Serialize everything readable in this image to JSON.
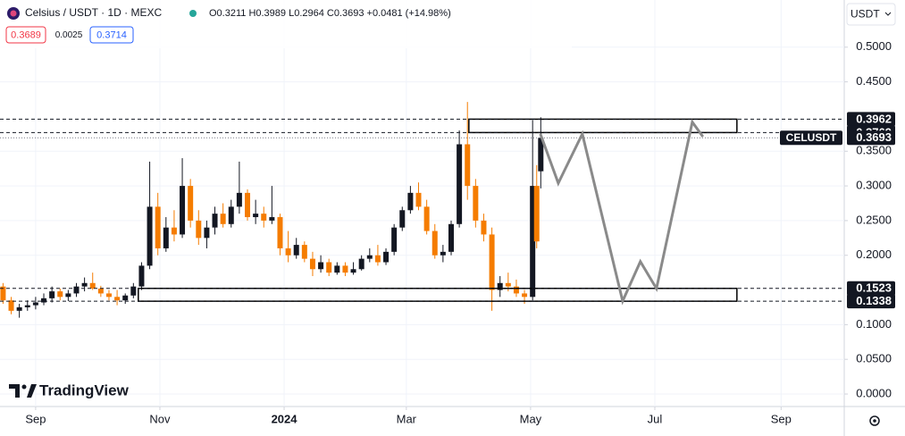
{
  "header": {
    "title": "Celsius / USDT · 1D · MEXC",
    "ohlc": "O0.3211 H0.3989 L0.2964 C0.3693 +0.0481 (+14.98%)",
    "bid": "0.3689",
    "spread": "0.0025",
    "ask": "0.3714",
    "currency": "USDT",
    "brand": "TradingView"
  },
  "chart_data": {
    "type": "candlestick",
    "up_color": "#131722",
    "down_color": "#f57c00",
    "grid": true,
    "xlim": [
      -17.5,
      397
    ],
    "ylim": [
      -0.018,
      0.568
    ],
    "xticks": [
      {
        "value": 0,
        "label": "Sep"
      },
      {
        "value": 61,
        "label": "Nov"
      },
      {
        "value": 122,
        "label": "2024"
      },
      {
        "value": 182,
        "label": "Mar"
      },
      {
        "value": 243,
        "label": "May"
      },
      {
        "value": 304,
        "label": "Jul"
      },
      {
        "value": 366,
        "label": "Sep"
      }
    ],
    "yticks": [
      {
        "value": 0.5,
        "label": "0.5000"
      },
      {
        "value": 0.45,
        "label": "0.4500"
      },
      {
        "value": 0.35,
        "label": "0.3500"
      },
      {
        "value": 0.3,
        "label": "0.3000"
      },
      {
        "value": 0.25,
        "label": "0.2500"
      },
      {
        "value": 0.2,
        "label": "0.2000"
      },
      {
        "value": 0.1,
        "label": "0.1000"
      },
      {
        "value": 0.05,
        "label": "0.0500"
      },
      {
        "value": 0,
        "label": "0.0000"
      }
    ],
    "x": [
      -16,
      -12,
      -8,
      -4,
      0,
      4,
      8,
      12,
      16,
      20,
      24,
      28,
      32,
      36,
      40,
      44,
      48,
      52,
      56,
      60,
      64,
      68,
      72,
      76,
      80,
      84,
      88,
      92,
      96,
      100,
      104,
      108,
      112,
      116,
      120,
      124,
      128,
      132,
      136,
      140,
      144,
      148,
      152,
      156,
      160,
      164,
      168,
      172,
      176,
      180,
      184,
      188,
      192,
      196,
      200,
      204,
      208,
      212,
      216,
      220,
      224,
      228,
      232,
      236,
      240,
      244,
      246,
      248
    ],
    "open": [
      0.155,
      0.135,
      0.12,
      0.125,
      0.128,
      0.132,
      0.138,
      0.148,
      0.14,
      0.145,
      0.155,
      0.16,
      0.152,
      0.145,
      0.14,
      0.135,
      0.142,
      0.155,
      0.185,
      0.27,
      0.21,
      0.24,
      0.23,
      0.3,
      0.25,
      0.225,
      0.24,
      0.26,
      0.245,
      0.27,
      0.29,
      0.255,
      0.26,
      0.25,
      0.255,
      0.21,
      0.2,
      0.215,
      0.195,
      0.18,
      0.19,
      0.175,
      0.185,
      0.175,
      0.18,
      0.195,
      0.2,
      0.19,
      0.205,
      0.24,
      0.265,
      0.29,
      0.27,
      0.235,
      0.2,
      0.205,
      0.245,
      0.36,
      0.3,
      0.25,
      0.23,
      0.15,
      0.16,
      0.155,
      0.145,
      0.14,
      0.3,
      0.3211
    ],
    "high": [
      0.16,
      0.14,
      0.13,
      0.135,
      0.14,
      0.145,
      0.155,
      0.152,
      0.15,
      0.16,
      0.168,
      0.175,
      0.156,
      0.15,
      0.15,
      0.145,
      0.16,
      0.19,
      0.335,
      0.29,
      0.255,
      0.265,
      0.34,
      0.31,
      0.265,
      0.25,
      0.27,
      0.275,
      0.28,
      0.335,
      0.295,
      0.28,
      0.27,
      0.3,
      0.26,
      0.235,
      0.225,
      0.22,
      0.205,
      0.2,
      0.195,
      0.19,
      0.19,
      0.19,
      0.2,
      0.21,
      0.215,
      0.21,
      0.245,
      0.27,
      0.3,
      0.305,
      0.28,
      0.245,
      0.215,
      0.25,
      0.38,
      0.421,
      0.31,
      0.26,
      0.24,
      0.17,
      0.175,
      0.165,
      0.15,
      0.395,
      0.33,
      0.3989
    ],
    "low": [
      0.13,
      0.115,
      0.11,
      0.12,
      0.122,
      0.128,
      0.132,
      0.135,
      0.134,
      0.14,
      0.148,
      0.15,
      0.14,
      0.135,
      0.128,
      0.13,
      0.138,
      0.15,
      0.18,
      0.2,
      0.205,
      0.22,
      0.225,
      0.24,
      0.215,
      0.21,
      0.23,
      0.24,
      0.24,
      0.26,
      0.25,
      0.245,
      0.24,
      0.245,
      0.2,
      0.19,
      0.195,
      0.19,
      0.17,
      0.175,
      0.17,
      0.172,
      0.17,
      0.172,
      0.178,
      0.19,
      0.185,
      0.186,
      0.2,
      0.235,
      0.26,
      0.265,
      0.23,
      0.195,
      0.19,
      0.2,
      0.24,
      0.28,
      0.24,
      0.22,
      0.12,
      0.14,
      0.148,
      0.14,
      0.13,
      0.135,
      0.21,
      0.2964
    ],
    "close": [
      0.135,
      0.12,
      0.125,
      0.128,
      0.132,
      0.138,
      0.148,
      0.14,
      0.145,
      0.155,
      0.16,
      0.152,
      0.145,
      0.14,
      0.135,
      0.142,
      0.155,
      0.185,
      0.27,
      0.21,
      0.24,
      0.23,
      0.3,
      0.25,
      0.225,
      0.24,
      0.26,
      0.245,
      0.27,
      0.29,
      0.255,
      0.26,
      0.25,
      0.255,
      0.21,
      0.2,
      0.215,
      0.195,
      0.18,
      0.19,
      0.175,
      0.185,
      0.175,
      0.18,
      0.195,
      0.2,
      0.19,
      0.205,
      0.24,
      0.265,
      0.29,
      0.27,
      0.235,
      0.2,
      0.205,
      0.245,
      0.36,
      0.3,
      0.25,
      0.23,
      0.15,
      0.16,
      0.155,
      0.145,
      0.14,
      0.3,
      0.22,
      0.3693
    ],
    "levels": [
      0.3962,
      0.3769,
      0.1523,
      0.1338
    ],
    "last_price": 0.3693,
    "symbol_label": "CELUSDT",
    "zones": [
      {
        "x": [
          212.7,
          344.3
        ],
        "y": [
          0.3769,
          0.3962
        ]
      },
      {
        "x": [
          50.4,
          344.3
        ],
        "y": [
          0.1338,
          0.1523
        ]
      }
    ],
    "projection": {
      "color": "#8a8a8a",
      "x": [
        247.8,
        256.6,
        268.4,
        288.2,
        296.9,
        304.8,
        322.4,
        327.6
      ],
      "values": [
        0.375,
        0.304,
        0.375,
        0.134,
        0.191,
        0.152,
        0.392,
        0.371
      ]
    }
  }
}
